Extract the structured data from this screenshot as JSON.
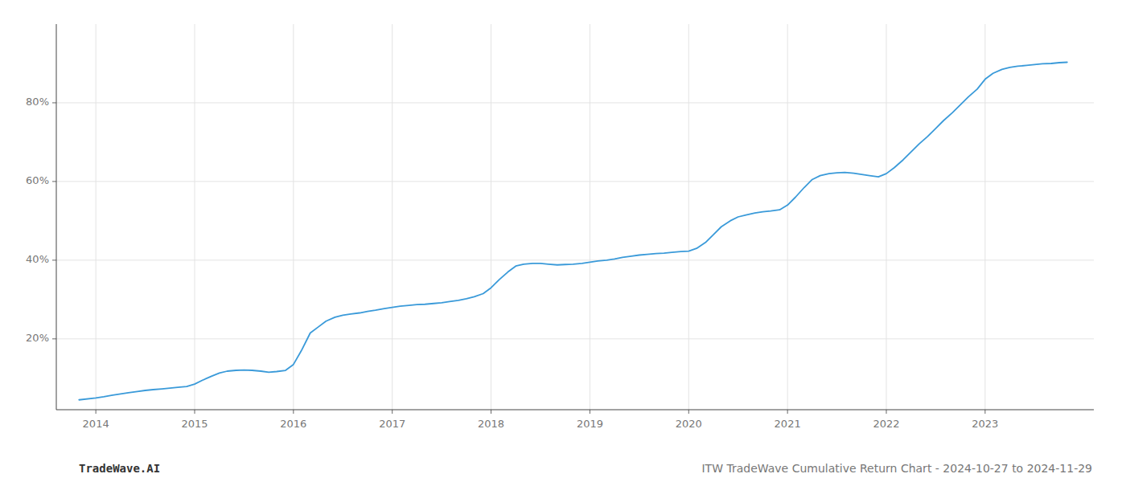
{
  "chart_data": {
    "type": "line",
    "annotations": [
      "TradeWave.AI",
      "ITW TradeWave Cumulative Return Chart - 2024-10-27 to 2024-11-29"
    ],
    "color": "#3a9ad9",
    "grid": true,
    "x": [
      2013.83,
      2014.0,
      2014.08,
      2014.17,
      2014.25,
      2014.33,
      2014.42,
      2014.5,
      2014.58,
      2014.67,
      2014.75,
      2014.83,
      2014.92,
      2015.0,
      2015.08,
      2015.17,
      2015.25,
      2015.33,
      2015.42,
      2015.5,
      2015.58,
      2015.67,
      2015.75,
      2015.83,
      2015.92,
      2016.0,
      2016.08,
      2016.17,
      2016.25,
      2016.33,
      2016.42,
      2016.5,
      2016.58,
      2016.67,
      2016.75,
      2016.83,
      2016.92,
      2017.0,
      2017.08,
      2017.17,
      2017.25,
      2017.33,
      2017.42,
      2017.5,
      2017.58,
      2017.67,
      2017.75,
      2017.83,
      2017.92,
      2018.0,
      2018.08,
      2018.17,
      2018.25,
      2018.33,
      2018.42,
      2018.5,
      2018.58,
      2018.67,
      2018.75,
      2018.83,
      2018.92,
      2019.0,
      2019.08,
      2019.17,
      2019.25,
      2019.33,
      2019.42,
      2019.5,
      2019.58,
      2019.67,
      2019.75,
      2019.83,
      2019.92,
      2020.0,
      2020.08,
      2020.17,
      2020.25,
      2020.33,
      2020.42,
      2020.5,
      2020.58,
      2020.67,
      2020.75,
      2020.83,
      2020.92,
      2021.0,
      2021.08,
      2021.17,
      2021.25,
      2021.33,
      2021.42,
      2021.5,
      2021.58,
      2021.67,
      2021.75,
      2021.83,
      2021.92,
      2022.0,
      2022.08,
      2022.17,
      2022.25,
      2022.33,
      2022.42,
      2022.5,
      2022.58,
      2022.67,
      2022.75,
      2022.83,
      2022.92,
      2023.0,
      2023.08,
      2023.17,
      2023.25,
      2023.33,
      2023.42,
      2023.5,
      2023.58,
      2023.67,
      2023.75,
      2023.83
    ],
    "values": [
      4.5,
      5.0,
      5.3,
      5.7,
      6.0,
      6.3,
      6.6,
      6.9,
      7.1,
      7.3,
      7.5,
      7.7,
      7.9,
      8.5,
      9.5,
      10.5,
      11.3,
      11.8,
      12.0,
      12.1,
      12.0,
      11.8,
      11.5,
      11.7,
      12.0,
      13.5,
      17.0,
      21.5,
      23.0,
      24.5,
      25.5,
      26.0,
      26.3,
      26.6,
      27.0,
      27.3,
      27.7,
      28.0,
      28.3,
      28.5,
      28.7,
      28.8,
      29.0,
      29.2,
      29.5,
      29.8,
      30.2,
      30.7,
      31.5,
      33.0,
      35.0,
      37.0,
      38.5,
      39.0,
      39.2,
      39.2,
      39.0,
      38.8,
      38.9,
      39.0,
      39.2,
      39.5,
      39.8,
      40.0,
      40.3,
      40.7,
      41.0,
      41.3,
      41.5,
      41.7,
      41.8,
      42.0,
      42.2,
      42.3,
      43.0,
      44.5,
      46.5,
      48.5,
      50.0,
      51.0,
      51.5,
      52.0,
      52.3,
      52.5,
      52.8,
      54.0,
      56.0,
      58.5,
      60.5,
      61.5,
      62.0,
      62.2,
      62.3,
      62.1,
      61.8,
      61.5,
      61.2,
      62.0,
      63.5,
      65.5,
      67.5,
      69.5,
      71.5,
      73.5,
      75.5,
      77.5,
      79.5,
      81.5,
      83.5,
      86.0,
      87.5,
      88.5,
      89.0,
      89.3,
      89.5,
      89.7,
      89.9,
      90.0,
      90.2,
      90.3
    ],
    "xlim": [
      2013.6,
      2024.1
    ],
    "xticks": [
      2014,
      2015,
      2016,
      2017,
      2018,
      2019,
      2020,
      2021,
      2022,
      2023
    ],
    "ylim": [
      2,
      100
    ],
    "yticks": [
      {
        "value": 20,
        "label": "20%"
      },
      {
        "value": 40,
        "label": "40%"
      },
      {
        "value": 60,
        "label": "60%"
      },
      {
        "value": 80,
        "label": "80%"
      }
    ]
  }
}
